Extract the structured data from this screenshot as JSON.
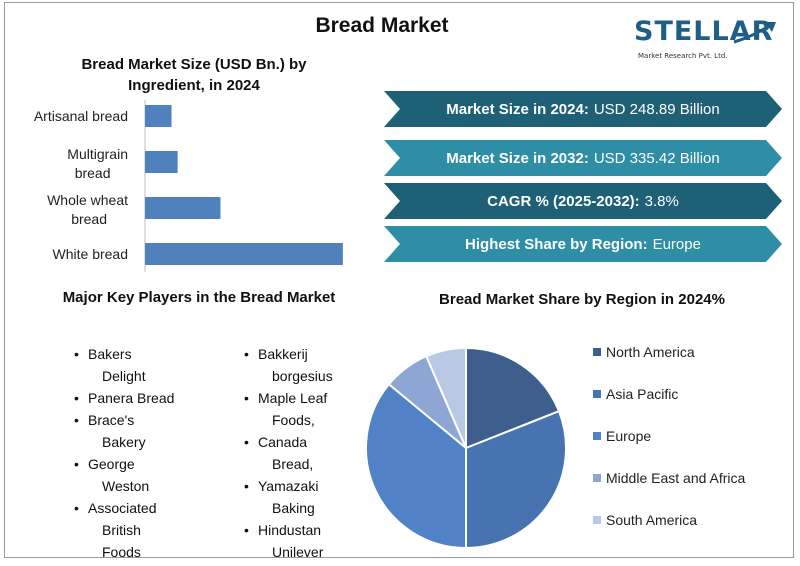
{
  "page": {
    "title": "Bread Market"
  },
  "logo": {
    "text": "STELLAR",
    "subtitle": "Market Research Pvt. Ltd."
  },
  "highlights": [
    {
      "label": "Market Size in 2024:",
      "value": "USD 248.89 Billion",
      "color": "#1e6076"
    },
    {
      "label": "Market Size in 2032:",
      "value": "USD 335.42 Billion",
      "color": "#2e8ea5"
    },
    {
      "label": "CAGR % (2025-2032):",
      "value": "3.8%",
      "color": "#1e6076"
    },
    {
      "label": "Highest Share by Region:",
      "value": "Europe",
      "color": "#2e8ea5"
    }
  ],
  "players": {
    "title": "Major Key Players in the Bread Market",
    "column1": [
      {
        "line1": "Bakers",
        "line2": "Delight"
      },
      {
        "line1": "Panera Bread",
        "line2": ""
      },
      {
        "line1": "Brace's",
        "line2": "Bakery"
      },
      {
        "line1": "George",
        "line2": "Weston"
      },
      {
        "line1": "Associated",
        "line2": "British"
      },
      {
        "line1": "",
        "line2": "Foods"
      }
    ],
    "column2": [
      {
        "line1": "Bakkerij",
        "line2": "borgesius"
      },
      {
        "line1": "Maple Leaf",
        "line2": "Foods,"
      },
      {
        "line1": "Canada",
        "line2": "Bread,"
      },
      {
        "line1": "Yamazaki",
        "line2": "Baking"
      },
      {
        "line1": "Hindustan",
        "line2": "Unilever"
      }
    ]
  },
  "chart_data": [
    {
      "type": "bar",
      "orientation": "horizontal",
      "title": "Bread Market Size (USD Bn.) by Ingredient, in 2024",
      "categories": [
        {
          "line1": "Artisanal bread",
          "line2": ""
        },
        {
          "line1": "Multigrain",
          "line2": "bread"
        },
        {
          "line1": "Whole wheat",
          "line2": "bread"
        },
        {
          "line1": "White bread",
          "line2": ""
        }
      ],
      "values": [
        13,
        16,
        37,
        97
      ],
      "xlim": [
        0,
        100
      ],
      "grid": false,
      "color": "#4f81bd"
    },
    {
      "type": "pie",
      "title": "Bread Market Share by Region in 2024%",
      "labels": [
        "North America",
        "Asia Pacific",
        "Europe",
        "Middle East and Africa",
        "South America"
      ],
      "values": [
        19,
        31,
        36,
        7.5,
        6.5
      ],
      "colors": [
        "#3e5f8e",
        "#4774b0",
        "#5182c8",
        "#8ea6d4",
        "#b9c8e4"
      ],
      "legend_position": "right"
    }
  ]
}
